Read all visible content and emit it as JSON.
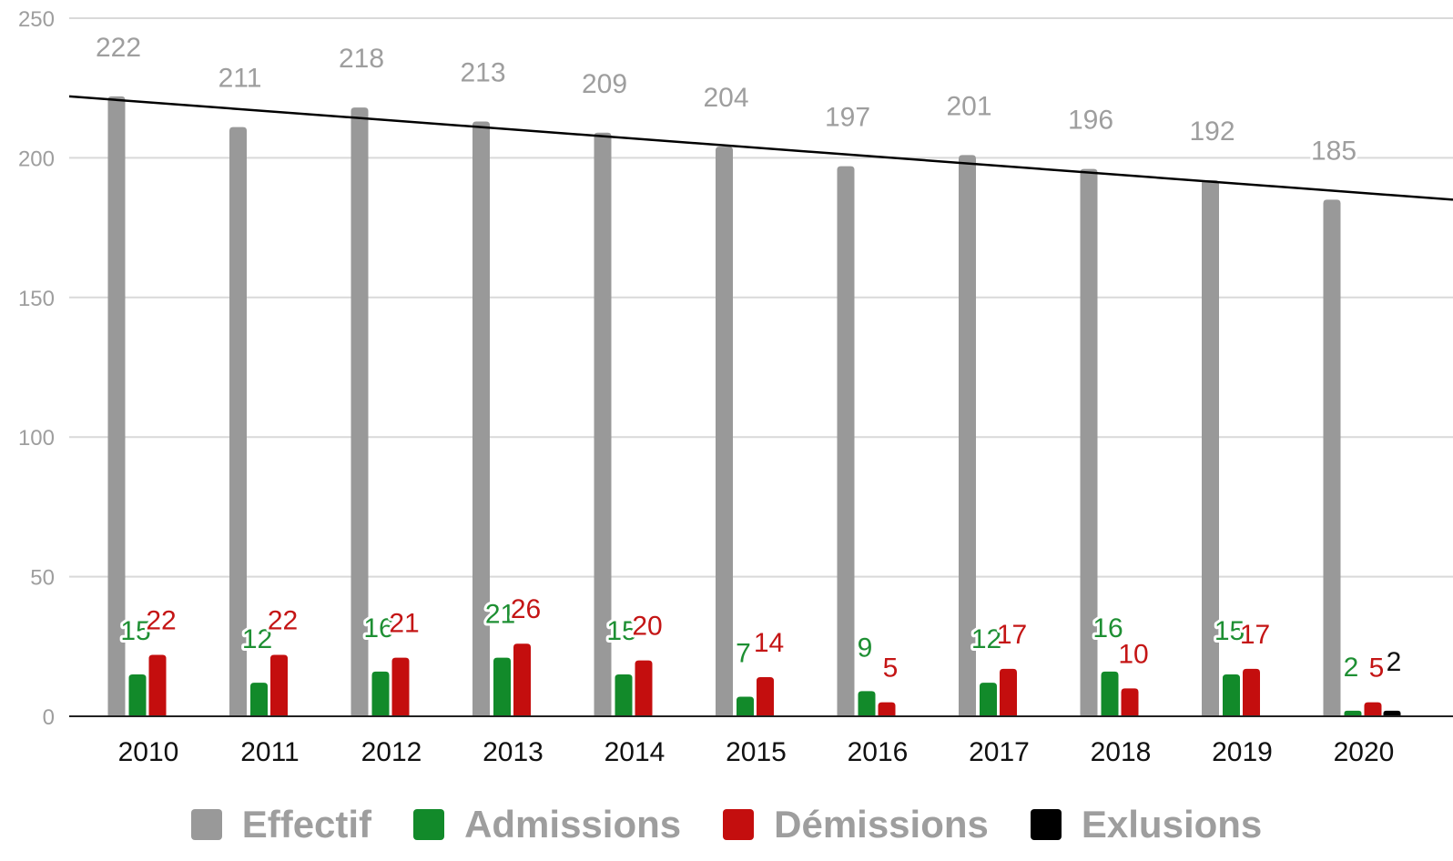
{
  "chart_data": {
    "type": "bar",
    "categories": [
      "2010",
      "2011",
      "2012",
      "2013",
      "2014",
      "2015",
      "2016",
      "2017",
      "2018",
      "2019",
      "2020"
    ],
    "series": [
      {
        "name": "Effectif",
        "color": "#999999",
        "label_color": "#9e9e9e",
        "values": [
          222,
          211,
          218,
          213,
          209,
          204,
          197,
          201,
          196,
          192,
          185
        ],
        "labels": [
          "222",
          "211",
          "218",
          "213",
          "209",
          "204",
          "197",
          "201",
          "196",
          "192",
          "185"
        ]
      },
      {
        "name": "Admissions",
        "color": "#128a2a",
        "label_color": "#1e8f33",
        "values": [
          15,
          12,
          16,
          21,
          15,
          7,
          9,
          12,
          16,
          15,
          2
        ],
        "labels": [
          "15",
          "12",
          "16",
          "21",
          "15",
          "7",
          "9",
          "12",
          "16",
          "15",
          "2"
        ]
      },
      {
        "name": "Démissions",
        "color": "#c40e0e",
        "label_color": "#c41515",
        "values": [
          22,
          22,
          21,
          26,
          20,
          14,
          5,
          17,
          10,
          17,
          5
        ],
        "labels": [
          "22",
          "22",
          "21",
          "26",
          "20",
          "14",
          "5",
          "17",
          "10",
          "17",
          "5"
        ]
      },
      {
        "name": "Exlusions",
        "color": "#000000",
        "label_color": "#111111",
        "values": [
          0,
          0,
          0,
          0,
          0,
          0,
          0,
          0,
          0,
          0,
          2
        ],
        "labels": [
          "",
          "",
          "",
          "",
          "",
          "",
          "",
          "",
          "",
          "",
          "2"
        ]
      }
    ],
    "trendline": {
      "series": "Effectif",
      "start": 222,
      "end": 185,
      "color": "#000000"
    },
    "title": "",
    "xlabel": "",
    "ylabel": "",
    "ylim": [
      0,
      250
    ],
    "yticks": [
      0,
      50,
      100,
      150,
      200,
      250
    ],
    "ytick_labels": [
      "0",
      "50",
      "100",
      "150",
      "200",
      "250"
    ],
    "grid": true,
    "legend_position": "bottom"
  }
}
